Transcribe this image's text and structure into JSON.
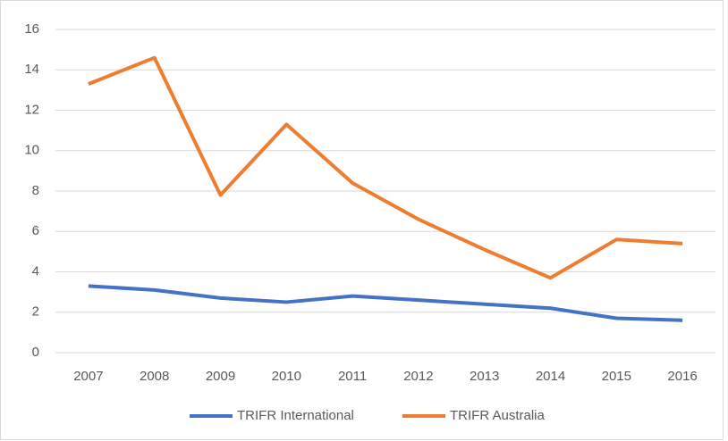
{
  "chart_data": {
    "type": "line",
    "categories": [
      "2007",
      "2008",
      "2009",
      "2010",
      "2011",
      "2012",
      "2013",
      "2014",
      "2015",
      "2016"
    ],
    "series": [
      {
        "name": "TRIFR International",
        "color": "#4472c4",
        "values": [
          3.3,
          3.1,
          2.7,
          2.5,
          2.8,
          2.6,
          2.4,
          2.2,
          1.7,
          1.6
        ]
      },
      {
        "name": "TRIFR Australia",
        "color": "#ed7d31",
        "values": [
          13.3,
          14.6,
          7.8,
          11.3,
          8.4,
          6.6,
          5.1,
          3.7,
          5.6,
          5.4
        ]
      }
    ],
    "ylim": [
      0,
      16
    ],
    "yticks": [
      0,
      2,
      4,
      6,
      8,
      10,
      12,
      14,
      16
    ],
    "grid": true,
    "legend": "bottom"
  }
}
